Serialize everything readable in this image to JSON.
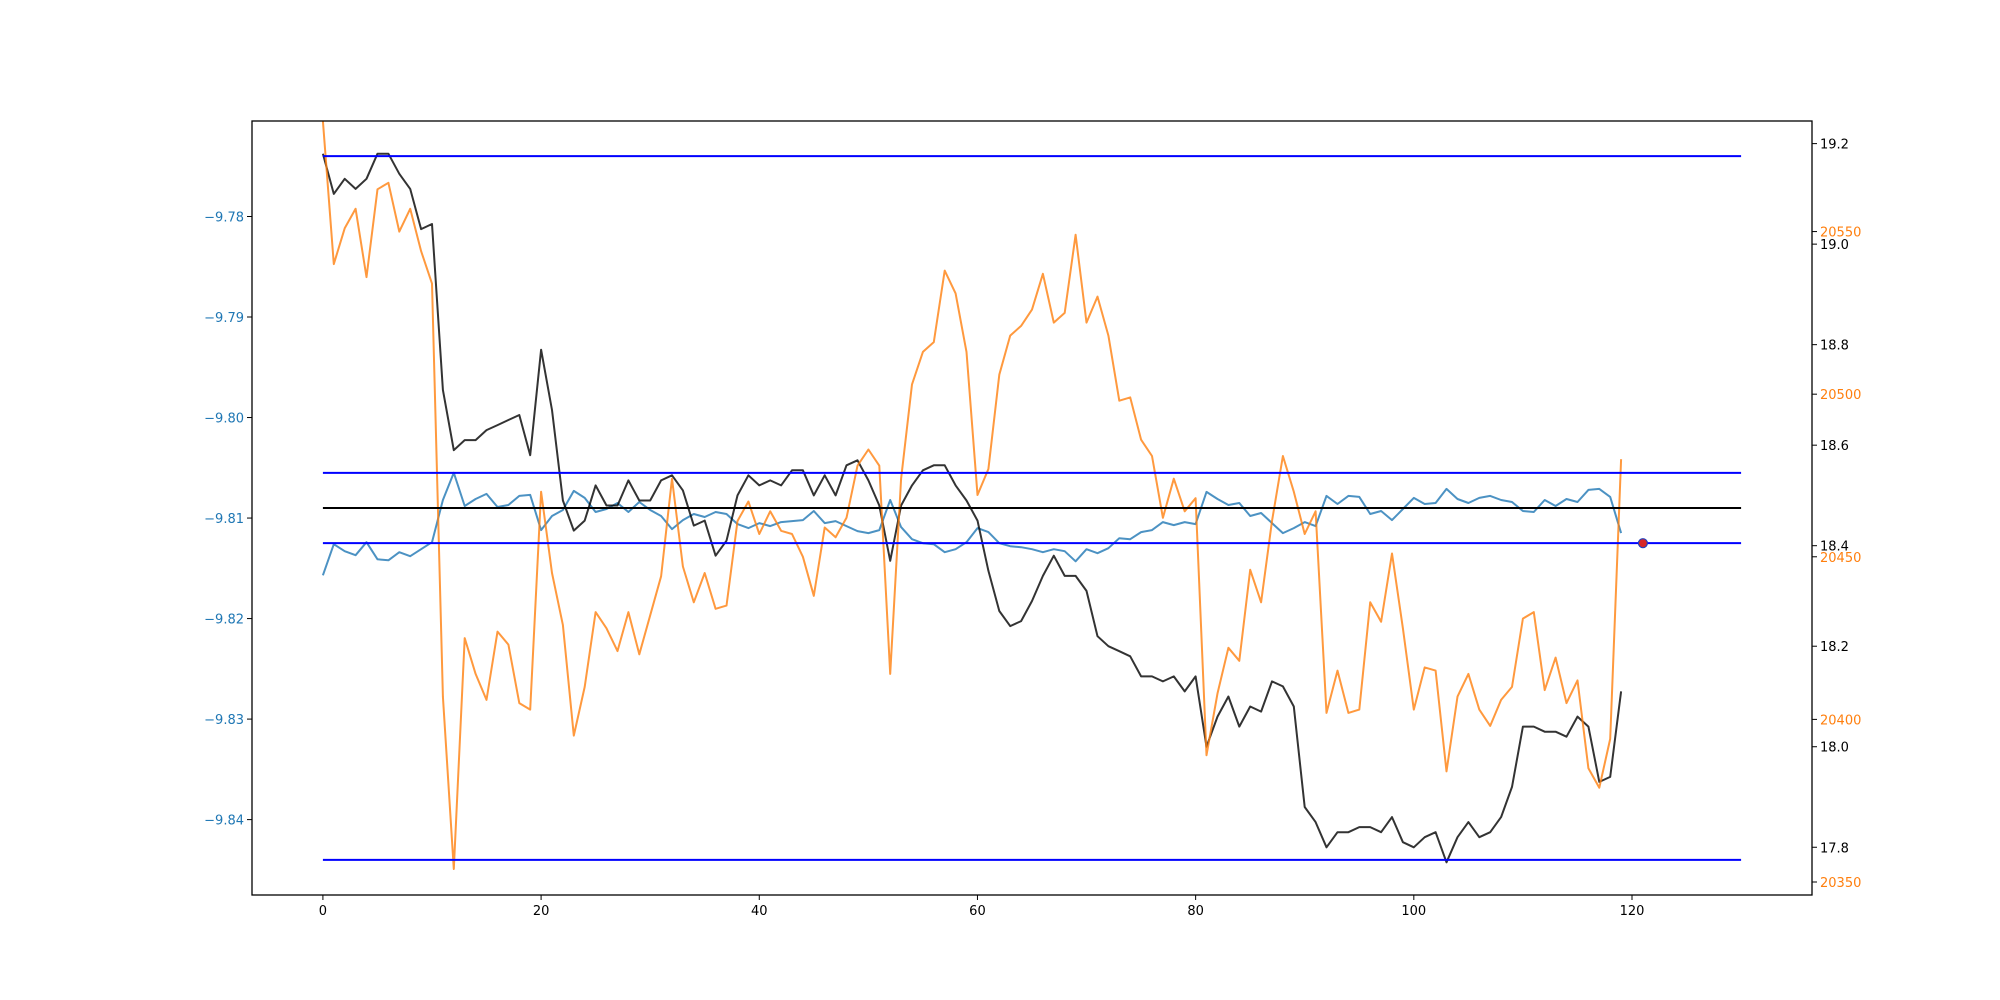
{
  "chart_data": {
    "type": "line",
    "x_ticks": [
      0,
      20,
      40,
      60,
      80,
      100,
      120
    ],
    "x_range": [
      -6.5,
      136.5
    ],
    "left_axis": {
      "color": "#1f77b4",
      "range": [
        -9.8475,
        -9.7705
      ],
      "ticks": [
        -9.78,
        -9.79,
        -9.8,
        -9.81,
        -9.82,
        -9.83,
        -9.84
      ],
      "tick_labels": [
        "−9.78",
        "−9.79",
        "−9.80",
        "−9.81",
        "−9.82",
        "−9.83",
        "−9.84"
      ]
    },
    "right_axis_black": {
      "color": "#000000",
      "range": [
        17.705,
        19.245
      ],
      "ticks": [
        19.2,
        19.0,
        18.8,
        18.6,
        18.4,
        18.2,
        18.0,
        17.8
      ],
      "tick_labels": [
        "19.2",
        "19.0",
        "18.8",
        "18.6",
        "18.4",
        "18.2",
        "18.0",
        "17.8"
      ]
    },
    "right_axis_orange": {
      "color": "#ff7f0e",
      "range": [
        20346,
        20584
      ],
      "ticks": [
        20550,
        20500,
        20450,
        20400,
        20350
      ],
      "tick_labels": [
        "20550",
        "20500",
        "20450",
        "20400",
        "20350"
      ]
    },
    "series": [
      {
        "axis": "left",
        "color": "#1f77b4",
        "x_start": 0,
        "values": [
          -9.8157,
          -9.8126,
          -9.8133,
          -9.8137,
          -9.8124,
          -9.8141,
          -9.8142,
          -9.8134,
          -9.8138,
          -9.8131,
          -9.8124,
          -9.8082,
          -9.8055,
          -9.8088,
          -9.8081,
          -9.8076,
          -9.8089,
          -9.8087,
          -9.8078,
          -9.8077,
          -9.8112,
          -9.8098,
          -9.8092,
          -9.8073,
          -9.808,
          -9.8094,
          -9.8091,
          -9.8085,
          -9.8094,
          -9.8084,
          -9.8092,
          -9.8098,
          -9.8111,
          -9.8102,
          -9.8096,
          -9.8099,
          -9.8094,
          -9.8096,
          -9.8106,
          -9.811,
          -9.8105,
          -9.8108,
          -9.8104,
          -9.8103,
          -9.8102,
          -9.8093,
          -9.8105,
          -9.8103,
          -9.8108,
          -9.8113,
          -9.8115,
          -9.8112,
          -9.8082,
          -9.8109,
          -9.8121,
          -9.8125,
          -9.8126,
          -9.8134,
          -9.8131,
          -9.8124,
          -9.811,
          -9.8114,
          -9.8125,
          -9.8128,
          -9.8129,
          -9.8131,
          -9.8134,
          -9.8131,
          -9.8133,
          -9.8143,
          -9.8131,
          -9.8135,
          -9.813,
          -9.812,
          -9.8121,
          -9.8114,
          -9.8112,
          -9.8104,
          -9.8107,
          -9.8104,
          -9.8106,
          -9.8074,
          -9.8081,
          -9.8087,
          -9.8085,
          -9.8098,
          -9.8095,
          -9.8105,
          -9.8115,
          -9.811,
          -9.8104,
          -9.8108,
          -9.8078,
          -9.8086,
          -9.8078,
          -9.8079,
          -9.8096,
          -9.8093,
          -9.8102,
          -9.8091,
          -9.808,
          -9.8086,
          -9.8085,
          -9.8071,
          -9.8081,
          -9.8085,
          -9.808,
          -9.8078,
          -9.8082,
          -9.8084,
          -9.8093,
          -9.8094,
          -9.8082,
          -9.8088,
          -9.8081,
          -9.8084,
          -9.8072,
          -9.8071,
          -9.8079,
          -9.8115
        ]
      },
      {
        "axis": "right_black",
        "color": "#000000",
        "x_start": 0,
        "values": [
          19.18,
          19.1,
          19.13,
          19.11,
          19.13,
          19.18,
          19.18,
          19.14,
          19.11,
          19.03,
          19.04,
          18.71,
          18.59,
          18.61,
          18.61,
          18.63,
          18.64,
          18.65,
          18.66,
          18.58,
          18.79,
          18.67,
          18.49,
          18.43,
          18.45,
          18.52,
          18.48,
          18.48,
          18.53,
          18.49,
          18.49,
          18.53,
          18.54,
          18.51,
          18.44,
          18.45,
          18.38,
          18.41,
          18.5,
          18.54,
          18.52,
          18.53,
          18.52,
          18.55,
          18.55,
          18.5,
          18.54,
          18.5,
          18.56,
          18.57,
          18.53,
          18.48,
          18.37,
          18.48,
          18.52,
          18.55,
          18.56,
          18.56,
          18.52,
          18.49,
          18.45,
          18.35,
          18.27,
          18.24,
          18.25,
          18.29,
          18.34,
          18.38,
          18.34,
          18.34,
          18.31,
          18.22,
          18.2,
          18.19,
          18.18,
          18.14,
          18.14,
          18.13,
          18.14,
          18.11,
          18.14,
          18.0,
          18.06,
          18.1,
          18.04,
          18.08,
          18.07,
          18.13,
          18.12,
          18.08,
          17.88,
          17.85,
          17.8,
          17.83,
          17.83,
          17.84,
          17.84,
          17.83,
          17.86,
          17.81,
          17.8,
          17.82,
          17.83,
          17.77,
          17.82,
          17.85,
          17.82,
          17.83,
          17.86,
          17.92,
          18.04,
          18.04,
          18.03,
          18.03,
          18.02,
          18.06,
          18.04,
          17.93,
          17.94,
          18.11
        ]
      },
      {
        "axis": "right_orange",
        "color": "#ff7f0e",
        "x_start": 0,
        "values": [
          20584,
          20540,
          20551,
          20557,
          20536,
          20563,
          20565,
          20550,
          20557,
          20544,
          20534,
          20407,
          20354,
          20425,
          20414,
          20406,
          20427,
          20423,
          20405,
          20403,
          20470,
          20445,
          20429,
          20395,
          20410,
          20433,
          20428,
          20421,
          20433,
          20420,
          20432,
          20444,
          20474,
          20447,
          20436,
          20445,
          20434,
          20435,
          20461,
          20467,
          20457,
          20464,
          20458,
          20457,
          20450,
          20438,
          20459,
          20456,
          20462,
          20478,
          20483,
          20478,
          20414,
          20474,
          20503,
          20513,
          20516,
          20538,
          20531,
          20513,
          20469,
          20477,
          20506,
          20518,
          20521,
          20526,
          20537,
          20522,
          20525,
          20549,
          20522,
          20530,
          20518,
          20498,
          20499,
          20486,
          20481,
          20462,
          20474,
          20464,
          20468,
          20389,
          20408,
          20422,
          20418,
          20446,
          20436,
          20461,
          20481,
          20470,
          20457,
          20464,
          20402,
          20415,
          20402,
          20403,
          20436,
          20430,
          20451,
          20428,
          20403,
          20416,
          20415,
          20384,
          20407,
          20414,
          20403,
          20398,
          20406,
          20410,
          20431,
          20433,
          20409,
          20419,
          20405,
          20412,
          20385,
          20379,
          20394,
          20480
        ]
      }
    ],
    "hlines": [
      {
        "axis": "right_black",
        "value": 19.175,
        "color": "#0000ff",
        "x_range": [
          0,
          130
        ]
      },
      {
        "axis": "right_black",
        "value": 18.545,
        "color": "#0000ff",
        "x_range": [
          0,
          130
        ]
      },
      {
        "axis": "right_black",
        "value": 18.475,
        "color": "#000000",
        "x_range": [
          0,
          130
        ]
      },
      {
        "axis": "right_black",
        "value": 18.405,
        "color": "#0000ff",
        "x_range": [
          0,
          130
        ]
      },
      {
        "axis": "right_black",
        "value": 17.775,
        "color": "#0000ff",
        "x_range": [
          0,
          130
        ]
      }
    ],
    "marker": {
      "axis": "right_black",
      "x": 121,
      "value": 18.405,
      "color": "#d62728"
    }
  }
}
